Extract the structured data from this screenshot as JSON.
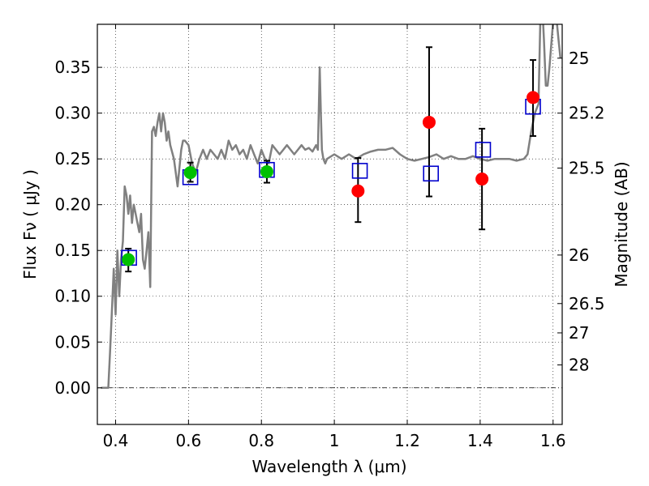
{
  "chart_data": {
    "type": "scatter",
    "xlabel": "Wavelength  λ (μm)",
    "ylabel": "Flux  Fν  ( μJy )",
    "y2label": "Magnitude (AB)",
    "xlim": [
      0.35,
      1.625
    ],
    "ylim": [
      -0.04,
      0.397
    ],
    "grid": true,
    "x_ticks": [
      0.4,
      0.6,
      0.8,
      1.0,
      1.2,
      1.4,
      1.6
    ],
    "x_tick_labels": [
      "0.4",
      "0.6",
      "0.8",
      "1",
      "1.2",
      "1.4",
      "1.6"
    ],
    "y_ticks": [
      0.0,
      0.05,
      0.1,
      0.15,
      0.2,
      0.25,
      0.3,
      0.35
    ],
    "y_tick_labels": [
      "0.00",
      "0.05",
      "0.10",
      "0.15",
      "0.20",
      "0.25",
      "0.30",
      "0.35"
    ],
    "y2_tick_labels": [
      "25",
      "25.2",
      "25.5",
      "26",
      "26.5",
      "27",
      "28"
    ],
    "y2_tick_flux": [
      0.36,
      0.3,
      0.24,
      0.145,
      0.092,
      0.06,
      0.025
    ],
    "colors": {
      "model": "#808080",
      "green": "#00c000",
      "red": "#ff0000",
      "box": "#0000cc",
      "errorbar": "#000000"
    },
    "series": [
      {
        "kind": "line",
        "x": [
          0.36,
          0.38,
          0.385,
          0.39,
          0.395,
          0.4,
          0.405,
          0.41,
          0.415,
          0.42,
          0.425,
          0.43,
          0.435,
          0.44,
          0.445,
          0.45,
          0.455,
          0.46,
          0.465,
          0.47,
          0.475,
          0.48,
          0.485,
          0.49,
          0.495,
          0.5,
          0.505,
          0.51,
          0.515,
          0.52,
          0.525,
          0.53,
          0.535,
          0.54,
          0.545,
          0.55,
          0.56,
          0.57,
          0.58,
          0.585,
          0.59,
          0.6,
          0.61,
          0.62,
          0.63,
          0.64,
          0.65,
          0.66,
          0.67,
          0.68,
          0.69,
          0.7,
          0.71,
          0.72,
          0.73,
          0.74,
          0.75,
          0.76,
          0.77,
          0.78,
          0.79,
          0.8,
          0.81,
          0.82,
          0.83,
          0.84,
          0.85,
          0.86,
          0.87,
          0.88,
          0.89,
          0.9,
          0.91,
          0.92,
          0.93,
          0.94,
          0.95,
          0.955,
          0.96,
          0.963,
          0.966,
          0.97,
          0.975,
          0.98,
          1.0,
          1.02,
          1.04,
          1.06,
          1.08,
          1.1,
          1.12,
          1.14,
          1.16,
          1.18,
          1.2,
          1.22,
          1.24,
          1.26,
          1.28,
          1.3,
          1.32,
          1.34,
          1.36,
          1.38,
          1.4,
          1.42,
          1.44,
          1.46,
          1.48,
          1.5,
          1.52,
          1.53,
          1.54,
          1.55,
          1.56,
          1.565,
          1.57,
          1.575,
          1.58,
          1.585,
          1.59,
          1.6,
          1.605,
          1.61,
          1.615,
          1.62
        ],
        "y": [
          0.0,
          0.0,
          0.04,
          0.085,
          0.13,
          0.08,
          0.15,
          0.1,
          0.14,
          0.16,
          0.22,
          0.21,
          0.19,
          0.21,
          0.18,
          0.2,
          0.19,
          0.18,
          0.17,
          0.19,
          0.14,
          0.13,
          0.15,
          0.17,
          0.11,
          0.28,
          0.285,
          0.275,
          0.29,
          0.3,
          0.28,
          0.3,
          0.29,
          0.27,
          0.28,
          0.265,
          0.25,
          0.22,
          0.26,
          0.27,
          0.27,
          0.265,
          0.245,
          0.235,
          0.25,
          0.26,
          0.25,
          0.26,
          0.255,
          0.25,
          0.26,
          0.25,
          0.27,
          0.26,
          0.265,
          0.255,
          0.26,
          0.25,
          0.265,
          0.255,
          0.245,
          0.26,
          0.25,
          0.245,
          0.265,
          0.26,
          0.255,
          0.26,
          0.265,
          0.26,
          0.255,
          0.26,
          0.265,
          0.26,
          0.262,
          0.258,
          0.265,
          0.26,
          0.35,
          0.3,
          0.26,
          0.25,
          0.245,
          0.25,
          0.255,
          0.25,
          0.255,
          0.25,
          0.255,
          0.258,
          0.26,
          0.26,
          0.262,
          0.255,
          0.25,
          0.248,
          0.25,
          0.252,
          0.255,
          0.25,
          0.253,
          0.25,
          0.25,
          0.253,
          0.25,
          0.248,
          0.25,
          0.25,
          0.25,
          0.248,
          0.25,
          0.255,
          0.28,
          0.3,
          0.31,
          0.4,
          0.42,
          0.38,
          0.33,
          0.33,
          0.35,
          0.4,
          0.42,
          0.4,
          0.38,
          0.36
        ]
      },
      {
        "kind": "errorbar",
        "x": [
          0.435,
          0.605,
          0.815,
          1.065,
          1.26,
          1.405,
          1.545
        ],
        "ylow": [
          0.127,
          0.225,
          0.224,
          0.181,
          0.209,
          0.173,
          0.275
        ],
        "yhigh": [
          0.152,
          0.246,
          0.248,
          0.251,
          0.372,
          0.283,
          0.358
        ]
      },
      {
        "kind": "marker-box",
        "x": [
          0.437,
          0.605,
          0.815,
          1.07,
          1.265,
          1.408,
          1.545
        ],
        "y": [
          0.142,
          0.23,
          0.238,
          0.237,
          0.234,
          0.26,
          0.307
        ]
      },
      {
        "kind": "marker-green",
        "x": [
          0.435,
          0.605,
          0.815
        ],
        "y": [
          0.14,
          0.235,
          0.236
        ]
      },
      {
        "kind": "marker-red",
        "x": [
          1.065,
          1.26,
          1.405,
          1.545
        ],
        "y": [
          0.215,
          0.29,
          0.228,
          0.317
        ]
      }
    ]
  }
}
